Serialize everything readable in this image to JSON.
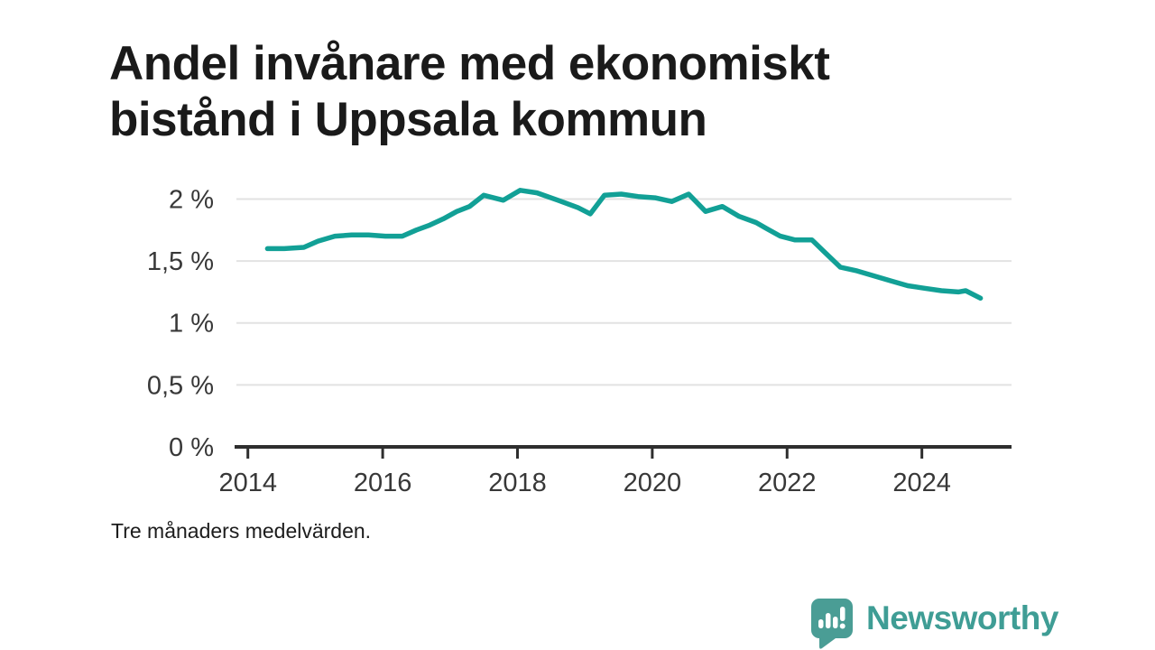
{
  "title": "Andel invånare med ekonomiskt bistånd i Uppsala kommun",
  "footnote": "Tre månaders medelvärden.",
  "branding": {
    "logo_text": "Newsworthy",
    "logo_icon": "bar-chart-speech-bubble-icon",
    "brand_color": "#3f9d95"
  },
  "colors": {
    "line": "#12a096",
    "grid": "#e2e2e2",
    "axis": "#2e2e2e",
    "tick_text": "#383838",
    "title_text": "#1a1a1a",
    "background": "#ffffff"
  },
  "chart_data": {
    "type": "line",
    "title": "Andel invånare med ekonomiskt bistånd i Uppsala kommun",
    "subtitle": "Tre månaders medelvärden.",
    "series_name": "Andel invånare med ekonomiskt bistånd",
    "unit": "%",
    "grid": "horizontal",
    "legend": "none",
    "xlim": [
      2013.83,
      2025.33
    ],
    "ylim": [
      0,
      2.2
    ],
    "x_ticks": [
      2014,
      2016,
      2018,
      2020,
      2022,
      2024
    ],
    "y_ticks": [
      {
        "value": 0,
        "label": "0 %"
      },
      {
        "value": 0.5,
        "label": "0,5 %"
      },
      {
        "value": 1,
        "label": "1 %"
      },
      {
        "value": 1.5,
        "label": "1,5 %"
      },
      {
        "value": 2,
        "label": "2 %"
      }
    ],
    "x": [
      2014.29,
      2014.54,
      2014.83,
      2015.04,
      2015.29,
      2015.54,
      2015.79,
      2016.04,
      2016.29,
      2016.5,
      2016.7,
      2016.9,
      2017.1,
      2017.29,
      2017.5,
      2017.79,
      2018.04,
      2018.29,
      2018.6,
      2018.9,
      2019.08,
      2019.29,
      2019.54,
      2019.79,
      2020.04,
      2020.29,
      2020.54,
      2020.79,
      2021.04,
      2021.29,
      2021.54,
      2021.7,
      2021.9,
      2022.12,
      2022.37,
      2022.54,
      2022.79,
      2023.04,
      2023.29,
      2023.54,
      2023.79,
      2024.04,
      2024.29,
      2024.54,
      2024.65,
      2024.87
    ],
    "y": [
      1.6,
      1.6,
      1.61,
      1.66,
      1.7,
      1.71,
      1.71,
      1.7,
      1.7,
      1.75,
      1.79,
      1.84,
      1.9,
      1.94,
      2.03,
      1.99,
      2.07,
      2.05,
      1.99,
      1.93,
      1.88,
      2.03,
      2.04,
      2.02,
      2.01,
      1.98,
      2.04,
      1.9,
      1.94,
      1.86,
      1.81,
      1.76,
      1.7,
      1.67,
      1.67,
      1.58,
      1.45,
      1.42,
      1.38,
      1.34,
      1.3,
      1.28,
      1.26,
      1.25,
      1.26,
      1.2
    ]
  }
}
